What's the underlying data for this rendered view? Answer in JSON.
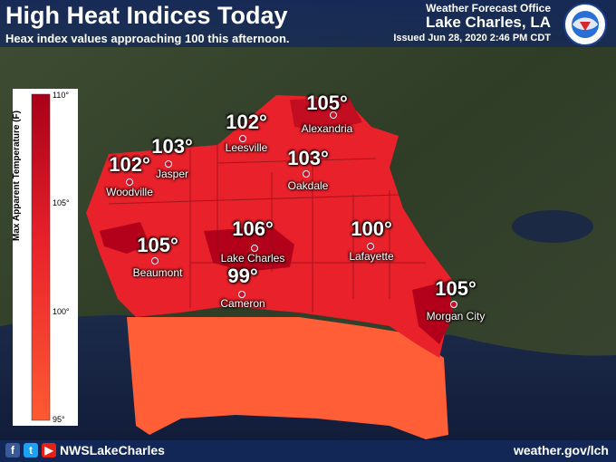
{
  "header": {
    "title": "High Heat Indices Today",
    "subtitle": "Heax index values approaching 100 this afternoon.",
    "office": "Weather Forecast Office",
    "location": "Lake Charles, LA",
    "issued": "Issued Jun 28, 2020 2:46 PM CDT"
  },
  "legend": {
    "title": "Max Apparent Temperature (F)",
    "ticks": [
      "110°",
      "105°",
      "100°",
      "95°"
    ],
    "colors": {
      "high": "#b3001b",
      "mid": "#e8212b",
      "low": "#ff6a3d"
    }
  },
  "cities": [
    {
      "name": "Alexandria",
      "value": "105°"
    },
    {
      "name": "Leesville",
      "value": "102°"
    },
    {
      "name": "Jasper",
      "value": "103°"
    },
    {
      "name": "Woodville",
      "value": "102°"
    },
    {
      "name": "Oakdale",
      "value": "103°"
    },
    {
      "name": "Beaumont",
      "value": "105°"
    },
    {
      "name": "Lake Charles",
      "value": "106°"
    },
    {
      "name": "Lafayette",
      "value": "100°"
    },
    {
      "name": "Cameron",
      "value": "99°"
    },
    {
      "name": "Morgan City",
      "value": "105°"
    }
  ],
  "footer": {
    "handle": "NWSLakeCharles",
    "website": "weather.gov/lch",
    "icons": [
      "facebook-icon",
      "twitter-icon",
      "youtube-icon"
    ]
  }
}
